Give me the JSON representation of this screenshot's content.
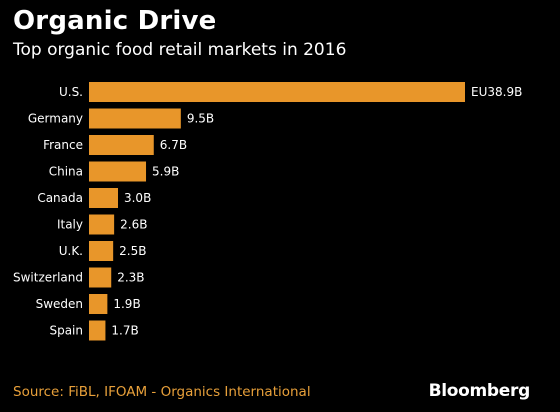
{
  "header": {
    "title": "Organic Drive",
    "subtitle": "Top organic food retail markets in 2016"
  },
  "footer": {
    "source": "Source: FiBL, IFOAM - Organics International",
    "brand": "Bloomberg"
  },
  "colors": {
    "background": "#000000",
    "bar": "#e8962a",
    "text": "#ffffff",
    "source": "#e8a03a"
  },
  "chart_data": {
    "type": "bar",
    "orientation": "horizontal",
    "categories": [
      "U.S.",
      "Germany",
      "France",
      "China",
      "Canada",
      "Italy",
      "U.K.",
      "Switzerland",
      "Sweden",
      "Spain"
    ],
    "values": [
      38.9,
      9.5,
      6.7,
      5.9,
      3.0,
      2.6,
      2.5,
      2.3,
      1.9,
      1.7
    ],
    "value_labels": [
      "EU38.9B",
      "9.5B",
      "6.7B",
      "5.9B",
      "3.0B",
      "2.6B",
      "2.5B",
      "2.3B",
      "1.9B",
      "1.7B"
    ],
    "unit": "billion euros",
    "xlim": [
      0,
      38.9
    ],
    "grid": false,
    "legend": "none"
  }
}
